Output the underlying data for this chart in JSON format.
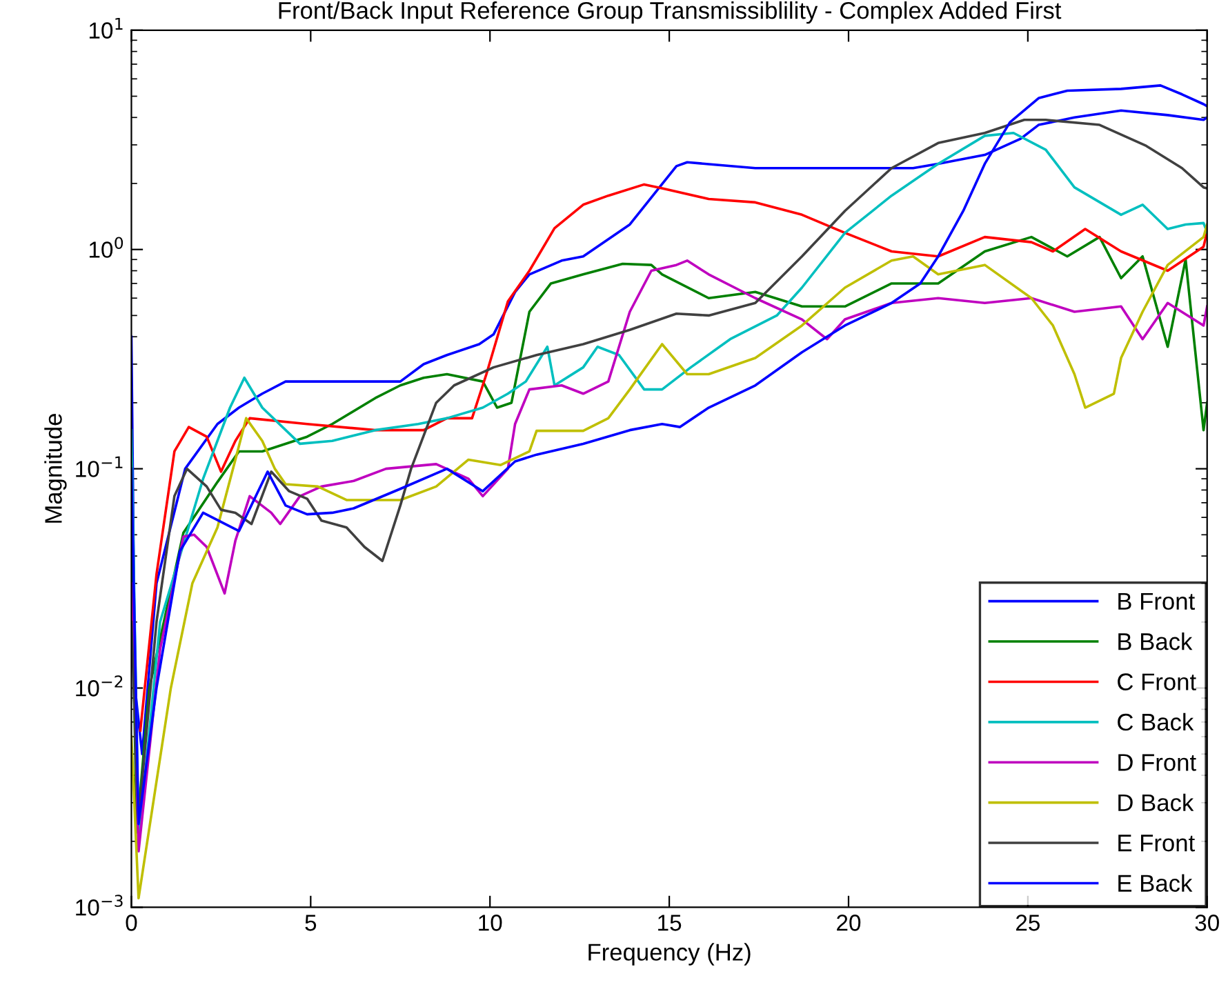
{
  "chart_data": {
    "type": "line",
    "title": "Front/Back Input Reference Group Transmissiblility - Complex Added First",
    "xlabel": "Frequency (Hz)",
    "ylabel": "Magnitude",
    "log": "y",
    "xlim": [
      0,
      30
    ],
    "xticks": [
      0,
      5,
      10,
      15,
      20,
      25,
      30
    ],
    "ylim": [
      0.001,
      10
    ],
    "yticks": [
      {
        "value": 0.001,
        "label": "10$^{−3}$"
      },
      {
        "value": 0.01,
        "label": "10$^{−2}$"
      },
      {
        "value": 0.1,
        "label": "10$^{−1}$"
      },
      {
        "value": 1,
        "label": "10$^{0}$"
      },
      {
        "value": 10,
        "label": "10$^{1}$"
      }
    ],
    "grid": false,
    "legend": "bottom right",
    "line_style": "solid",
    "series": [
      {
        "name": "B Front",
        "color": "#0000ff",
        "x": [
          0,
          0.1,
          0.3,
          0.7,
          1.5,
          2.4,
          3,
          3.65,
          4.3,
          4.9,
          6.2,
          7.5,
          8.15,
          8.8,
          9.7,
          10.1,
          10.7,
          11.1,
          12,
          12.6,
          13.9,
          15.2,
          15.5,
          16.1,
          17.4,
          19.9,
          21.8,
          22.5,
          23.8,
          24.8,
          25.3,
          26.3,
          27.6,
          28.9,
          29.9,
          30
        ],
        "values": [
          0.4,
          0.01,
          0.005,
          0.03,
          0.1,
          0.16,
          0.19,
          0.22,
          0.25,
          0.25,
          0.25,
          0.25,
          0.3,
          0.33,
          0.37,
          0.41,
          0.64,
          0.77,
          0.89,
          0.93,
          1.3,
          2.4,
          2.5,
          2.45,
          2.35,
          2.35,
          2.35,
          2.46,
          2.7,
          3.2,
          3.7,
          4.0,
          4.3,
          4.1,
          3.9,
          4.0
        ]
      },
      {
        "name": "B Back",
        "color": "#008000",
        "x": [
          0,
          0.15,
          0.5,
          1.45,
          2.4,
          3,
          3.65,
          4.9,
          5.6,
          6.8,
          7.5,
          8.15,
          8.8,
          9.8,
          10.2,
          10.6,
          11.1,
          11.7,
          12.6,
          13.7,
          14.5,
          14.8,
          16.1,
          17.4,
          18.7,
          19.9,
          21.2,
          22.5,
          23.8,
          25.1,
          26.1,
          27,
          27.6,
          28.2,
          28.9,
          29.4,
          29.9,
          30
        ],
        "values": [
          0.04,
          0.0022,
          0.01,
          0.051,
          0.087,
          0.12,
          0.12,
          0.14,
          0.16,
          0.21,
          0.24,
          0.26,
          0.27,
          0.25,
          0.19,
          0.2,
          0.52,
          0.7,
          0.77,
          0.86,
          0.85,
          0.77,
          0.6,
          0.64,
          0.55,
          0.55,
          0.7,
          0.7,
          0.98,
          1.14,
          0.93,
          1.14,
          0.74,
          0.93,
          0.36,
          0.9,
          0.15,
          0.2
        ]
      },
      {
        "name": "C Front",
        "color": "#ff0000",
        "x": [
          0.25,
          0.7,
          1.2,
          1.6,
          2.1,
          2.5,
          2.9,
          3.3,
          4.9,
          6.8,
          8.15,
          8.8,
          9.5,
          9.9,
          10.5,
          11.1,
          11.8,
          12.6,
          13.3,
          14.3,
          14.8,
          16.1,
          17.4,
          18.7,
          19.9,
          21.2,
          22.5,
          23.8,
          25.1,
          25.7,
          26.6,
          27.6,
          28.9,
          29.9,
          30
        ],
        "values": [
          0.0064,
          0.033,
          0.12,
          0.155,
          0.14,
          0.097,
          0.134,
          0.17,
          0.16,
          0.15,
          0.15,
          0.17,
          0.17,
          0.27,
          0.58,
          0.8,
          1.25,
          1.6,
          1.76,
          1.98,
          1.9,
          1.7,
          1.64,
          1.44,
          1.19,
          0.98,
          0.93,
          1.14,
          1.08,
          0.98,
          1.24,
          0.98,
          0.8,
          1.03,
          1.2
        ]
      },
      {
        "name": "C Back",
        "color": "#00bfbf",
        "x": [
          0,
          0.2,
          0.8,
          2,
          2.75,
          3.15,
          3.65,
          4.7,
          5.6,
          6.8,
          8,
          8.8,
          9.8,
          10.5,
          11,
          11.6,
          11.8,
          12.6,
          13,
          13.6,
          14.3,
          14.8,
          15.6,
          16.7,
          18,
          18.7,
          19.9,
          21.2,
          22.5,
          23.8,
          24.6,
          25.5,
          26.3,
          27.6,
          28.2,
          28.9,
          29.4,
          29.9,
          30
        ],
        "values": [
          0.15,
          0.002,
          0.02,
          0.09,
          0.19,
          0.26,
          0.19,
          0.13,
          0.134,
          0.15,
          0.16,
          0.17,
          0.19,
          0.22,
          0.25,
          0.36,
          0.24,
          0.29,
          0.36,
          0.33,
          0.23,
          0.23,
          0.29,
          0.39,
          0.5,
          0.67,
          1.19,
          1.76,
          2.46,
          3.3,
          3.4,
          2.85,
          1.92,
          1.44,
          1.6,
          1.24,
          1.3,
          1.32,
          1.2
        ]
      },
      {
        "name": "D Front",
        "color": "#bf00bf",
        "x": [
          0,
          0.2,
          0.8,
          1.45,
          1.75,
          2.1,
          2.6,
          2.9,
          3.3,
          3.9,
          4.15,
          4.7,
          5.3,
          6.2,
          7.1,
          8.5,
          9.4,
          9.8,
          10.5,
          10.7,
          11.1,
          12,
          12.6,
          13.3,
          13.9,
          14.5,
          15.2,
          15.5,
          16.1,
          17.4,
          18.7,
          19.4,
          19.9,
          21.2,
          22.5,
          23.8,
          25.1,
          26.3,
          27.6,
          28.2,
          28.9,
          29.9,
          30
        ],
        "values": [
          0.03,
          0.0018,
          0.015,
          0.049,
          0.05,
          0.044,
          0.027,
          0.047,
          0.075,
          0.063,
          0.056,
          0.075,
          0.083,
          0.088,
          0.1,
          0.105,
          0.09,
          0.075,
          0.1,
          0.16,
          0.23,
          0.24,
          0.22,
          0.25,
          0.52,
          0.8,
          0.85,
          0.89,
          0.77,
          0.6,
          0.48,
          0.39,
          0.48,
          0.57,
          0.6,
          0.57,
          0.6,
          0.52,
          0.55,
          0.39,
          0.57,
          0.45,
          0.55
        ]
      },
      {
        "name": "D Back",
        "color": "#bfbf00",
        "x": [
          0,
          0.2,
          1.1,
          1.7,
          2.4,
          2.9,
          3.2,
          3.65,
          4,
          4.3,
          5.2,
          6,
          7.5,
          8.5,
          9.4,
          10.3,
          11.1,
          11.3,
          12.6,
          13.3,
          13.9,
          14.8,
          15.5,
          16.1,
          17.4,
          18.7,
          19.9,
          21.2,
          21.8,
          22.5,
          23.8,
          25.1,
          25.7,
          26.3,
          26.6,
          27.4,
          27.6,
          28.2,
          28.9,
          29.9,
          30
        ],
        "values": [
          0.006,
          0.0011,
          0.01,
          0.03,
          0.054,
          0.11,
          0.17,
          0.134,
          0.1,
          0.085,
          0.083,
          0.072,
          0.072,
          0.083,
          0.11,
          0.104,
          0.12,
          0.149,
          0.149,
          0.17,
          0.23,
          0.37,
          0.27,
          0.27,
          0.32,
          0.45,
          0.67,
          0.89,
          0.93,
          0.77,
          0.85,
          0.6,
          0.45,
          0.27,
          0.19,
          0.22,
          0.32,
          0.52,
          0.85,
          1.14,
          1.3
        ]
      },
      {
        "name": "E Front",
        "color": "#404040",
        "x": [
          0,
          0.2,
          0.7,
          1.2,
          1.55,
          2.1,
          2.5,
          2.9,
          3.35,
          3.9,
          4.4,
          4.9,
          5.3,
          6,
          6.5,
          7,
          7.5,
          7.8,
          8.5,
          9,
          10.1,
          11.3,
          12.6,
          13.9,
          15.2,
          16.1,
          17.4,
          18.7,
          19.9,
          21.2,
          22.5,
          23.8,
          24.9,
          25.5,
          27,
          28.3,
          29.3,
          29.9,
          30
        ],
        "values": [
          0.02,
          0.0025,
          0.02,
          0.075,
          0.1,
          0.083,
          0.065,
          0.063,
          0.056,
          0.097,
          0.079,
          0.073,
          0.058,
          0.054,
          0.044,
          0.038,
          0.068,
          0.1,
          0.2,
          0.24,
          0.29,
          0.33,
          0.37,
          0.43,
          0.51,
          0.5,
          0.57,
          0.93,
          1.5,
          2.35,
          3.06,
          3.4,
          3.9,
          3.9,
          3.7,
          2.97,
          2.35,
          1.92,
          1.9
        ]
      },
      {
        "name": "E Back",
        "color": "#0000ff",
        "x": [
          0,
          0.2,
          0.7,
          1.35,
          2,
          3,
          3.8,
          4.3,
          4.9,
          5.6,
          6.2,
          7.5,
          8.8,
          9.8,
          10.7,
          11.3,
          12.6,
          13.9,
          14.8,
          15.3,
          16.1,
          17.4,
          18.7,
          19.9,
          21.2,
          22,
          22.5,
          23.2,
          23.8,
          24.5,
          25.3,
          26.1,
          27.6,
          28.7,
          29.3,
          29.9,
          30
        ],
        "values": [
          0.1,
          0.0024,
          0.01,
          0.042,
          0.063,
          0.052,
          0.097,
          0.068,
          0.062,
          0.063,
          0.066,
          0.081,
          0.1,
          0.079,
          0.108,
          0.116,
          0.13,
          0.15,
          0.16,
          0.155,
          0.19,
          0.24,
          0.34,
          0.45,
          0.57,
          0.7,
          0.93,
          1.5,
          2.46,
          3.8,
          4.9,
          5.3,
          5.4,
          5.6,
          5.1,
          4.6,
          4.5
        ]
      }
    ]
  }
}
